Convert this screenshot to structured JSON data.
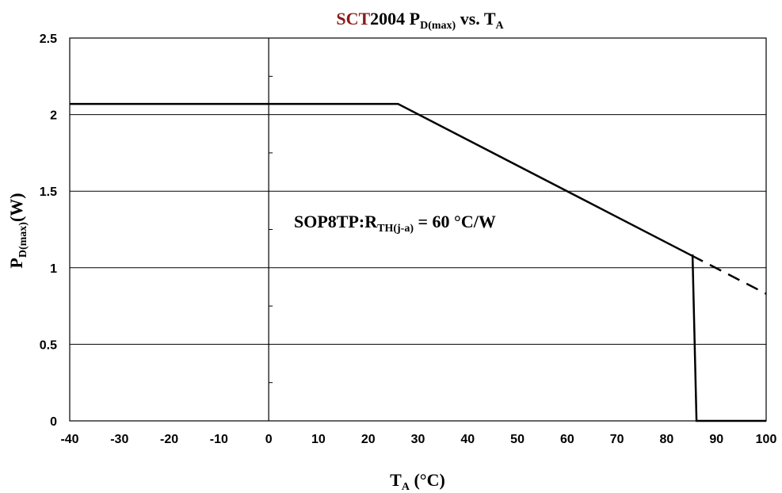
{
  "chart_data": {
    "type": "line",
    "title": {
      "brand": "SCT",
      "part": "2004 P",
      "part_sub": "D(max)",
      "mid": " vs. T",
      "mid_sub": "A"
    },
    "xlabel": {
      "main": "T",
      "sub": "A",
      "rest": " (°C)"
    },
    "ylabel": {
      "main": "P",
      "sub": "D(max)",
      "rest": "(W)"
    },
    "xlim": [
      -40,
      100
    ],
    "ylim": [
      0,
      2.5
    ],
    "x_ticks": [
      "-40",
      "-30",
      "-20",
      "-10",
      "0",
      "10",
      "20",
      "30",
      "40",
      "50",
      "60",
      "70",
      "80",
      "90",
      "100"
    ],
    "y_ticks": [
      "0",
      "0.5",
      "1",
      "1.5",
      "2",
      "2.5"
    ],
    "grid": "horizontal",
    "annotation": {
      "prefix": "SOP8TP:R",
      "sub": "TH(j-a)",
      "suffix": " = 60 °C/W"
    },
    "series": [
      {
        "style": "solid",
        "x": [
          -40,
          26,
          85,
          85.2,
          86,
          100
        ],
        "y": [
          2.07,
          2.07,
          1.08,
          1.08,
          0,
          0
        ]
      },
      {
        "style": "dashed",
        "x": [
          85,
          100
        ],
        "y": [
          1.08,
          0.83
        ]
      }
    ]
  }
}
